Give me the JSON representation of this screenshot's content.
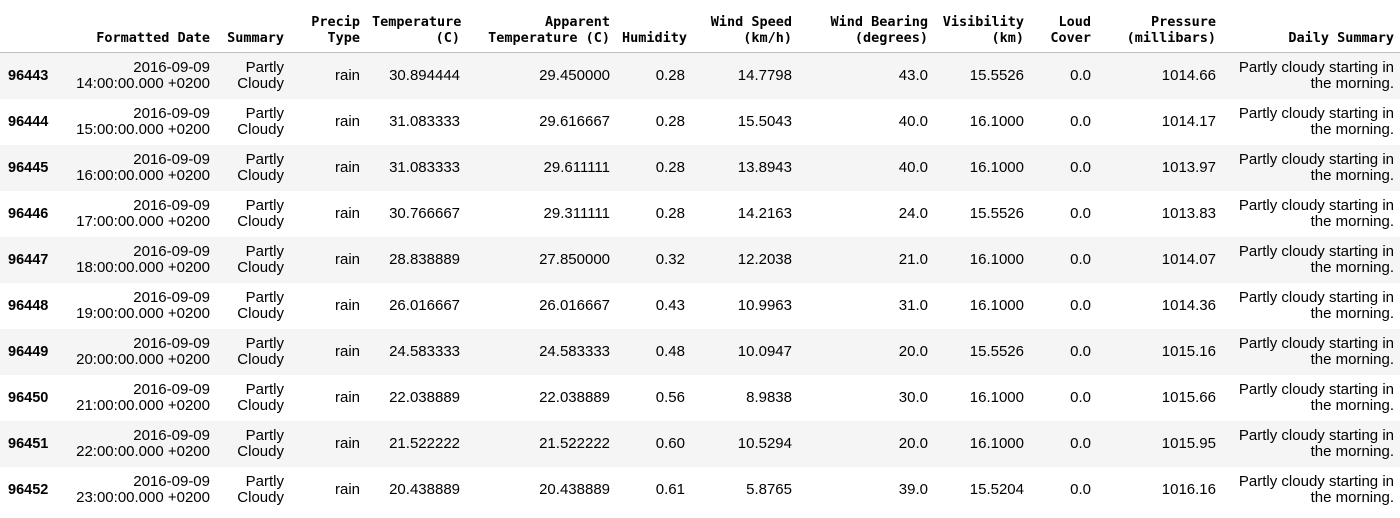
{
  "table": {
    "index_header": "",
    "columns": [
      [
        "Formatted Date"
      ],
      [
        "Summary"
      ],
      [
        "Precip",
        "Type"
      ],
      [
        "Temperature",
        "(C)"
      ],
      [
        "Apparent",
        "Temperature (C)"
      ],
      [
        "Humidity"
      ],
      [
        "Wind Speed",
        "(km/h)"
      ],
      [
        "Wind Bearing",
        "(degrees)"
      ],
      [
        "Visibility",
        "(km)"
      ],
      [
        "Loud",
        "Cover"
      ],
      [
        "Pressure",
        "(millibars)"
      ],
      [
        "Daily Summary"
      ]
    ],
    "rows": [
      {
        "index": "96443",
        "cells": [
          [
            "2016-09-09",
            "14:00:00.000 +0200"
          ],
          [
            "Partly",
            "Cloudy"
          ],
          [
            "rain"
          ],
          [
            "30.894444"
          ],
          [
            "29.450000"
          ],
          [
            "0.28"
          ],
          [
            "14.7798"
          ],
          [
            "43.0"
          ],
          [
            "15.5526"
          ],
          [
            "0.0"
          ],
          [
            "1014.66"
          ],
          [
            "Partly cloudy starting in",
            "the morning."
          ]
        ]
      },
      {
        "index": "96444",
        "cells": [
          [
            "2016-09-09",
            "15:00:00.000 +0200"
          ],
          [
            "Partly",
            "Cloudy"
          ],
          [
            "rain"
          ],
          [
            "31.083333"
          ],
          [
            "29.616667"
          ],
          [
            "0.28"
          ],
          [
            "15.5043"
          ],
          [
            "40.0"
          ],
          [
            "16.1000"
          ],
          [
            "0.0"
          ],
          [
            "1014.17"
          ],
          [
            "Partly cloudy starting in",
            "the morning."
          ]
        ]
      },
      {
        "index": "96445",
        "cells": [
          [
            "2016-09-09",
            "16:00:00.000 +0200"
          ],
          [
            "Partly",
            "Cloudy"
          ],
          [
            "rain"
          ],
          [
            "31.083333"
          ],
          [
            "29.611111"
          ],
          [
            "0.28"
          ],
          [
            "13.8943"
          ],
          [
            "40.0"
          ],
          [
            "16.1000"
          ],
          [
            "0.0"
          ],
          [
            "1013.97"
          ],
          [
            "Partly cloudy starting in",
            "the morning."
          ]
        ]
      },
      {
        "index": "96446",
        "cells": [
          [
            "2016-09-09",
            "17:00:00.000 +0200"
          ],
          [
            "Partly",
            "Cloudy"
          ],
          [
            "rain"
          ],
          [
            "30.766667"
          ],
          [
            "29.311111"
          ],
          [
            "0.28"
          ],
          [
            "14.2163"
          ],
          [
            "24.0"
          ],
          [
            "15.5526"
          ],
          [
            "0.0"
          ],
          [
            "1013.83"
          ],
          [
            "Partly cloudy starting in",
            "the morning."
          ]
        ]
      },
      {
        "index": "96447",
        "cells": [
          [
            "2016-09-09",
            "18:00:00.000 +0200"
          ],
          [
            "Partly",
            "Cloudy"
          ],
          [
            "rain"
          ],
          [
            "28.838889"
          ],
          [
            "27.850000"
          ],
          [
            "0.32"
          ],
          [
            "12.2038"
          ],
          [
            "21.0"
          ],
          [
            "16.1000"
          ],
          [
            "0.0"
          ],
          [
            "1014.07"
          ],
          [
            "Partly cloudy starting in",
            "the morning."
          ]
        ]
      },
      {
        "index": "96448",
        "cells": [
          [
            "2016-09-09",
            "19:00:00.000 +0200"
          ],
          [
            "Partly",
            "Cloudy"
          ],
          [
            "rain"
          ],
          [
            "26.016667"
          ],
          [
            "26.016667"
          ],
          [
            "0.43"
          ],
          [
            "10.9963"
          ],
          [
            "31.0"
          ],
          [
            "16.1000"
          ],
          [
            "0.0"
          ],
          [
            "1014.36"
          ],
          [
            "Partly cloudy starting in",
            "the morning."
          ]
        ]
      },
      {
        "index": "96449",
        "cells": [
          [
            "2016-09-09",
            "20:00:00.000 +0200"
          ],
          [
            "Partly",
            "Cloudy"
          ],
          [
            "rain"
          ],
          [
            "24.583333"
          ],
          [
            "24.583333"
          ],
          [
            "0.48"
          ],
          [
            "10.0947"
          ],
          [
            "20.0"
          ],
          [
            "15.5526"
          ],
          [
            "0.0"
          ],
          [
            "1015.16"
          ],
          [
            "Partly cloudy starting in",
            "the morning."
          ]
        ]
      },
      {
        "index": "96450",
        "cells": [
          [
            "2016-09-09",
            "21:00:00.000 +0200"
          ],
          [
            "Partly",
            "Cloudy"
          ],
          [
            "rain"
          ],
          [
            "22.038889"
          ],
          [
            "22.038889"
          ],
          [
            "0.56"
          ],
          [
            "8.9838"
          ],
          [
            "30.0"
          ],
          [
            "16.1000"
          ],
          [
            "0.0"
          ],
          [
            "1015.66"
          ],
          [
            "Partly cloudy starting in",
            "the morning."
          ]
        ]
      },
      {
        "index": "96451",
        "cells": [
          [
            "2016-09-09",
            "22:00:00.000 +0200"
          ],
          [
            "Partly",
            "Cloudy"
          ],
          [
            "rain"
          ],
          [
            "21.522222"
          ],
          [
            "21.522222"
          ],
          [
            "0.60"
          ],
          [
            "10.5294"
          ],
          [
            "20.0"
          ],
          [
            "16.1000"
          ],
          [
            "0.0"
          ],
          [
            "1015.95"
          ],
          [
            "Partly cloudy starting in",
            "the morning."
          ]
        ]
      },
      {
        "index": "96452",
        "cells": [
          [
            "2016-09-09",
            "23:00:00.000 +0200"
          ],
          [
            "Partly",
            "Cloudy"
          ],
          [
            "rain"
          ],
          [
            "20.438889"
          ],
          [
            "20.438889"
          ],
          [
            "0.61"
          ],
          [
            "5.8765"
          ],
          [
            "39.0"
          ],
          [
            "15.5204"
          ],
          [
            "0.0"
          ],
          [
            "1016.16"
          ],
          [
            "Partly cloudy starting in",
            "the morning."
          ]
        ]
      }
    ]
  },
  "colors": {
    "row_stripe": "#f5f5f5",
    "row_plain": "#ffffff",
    "text": "#000000",
    "header_border": "#bdbdbd"
  }
}
